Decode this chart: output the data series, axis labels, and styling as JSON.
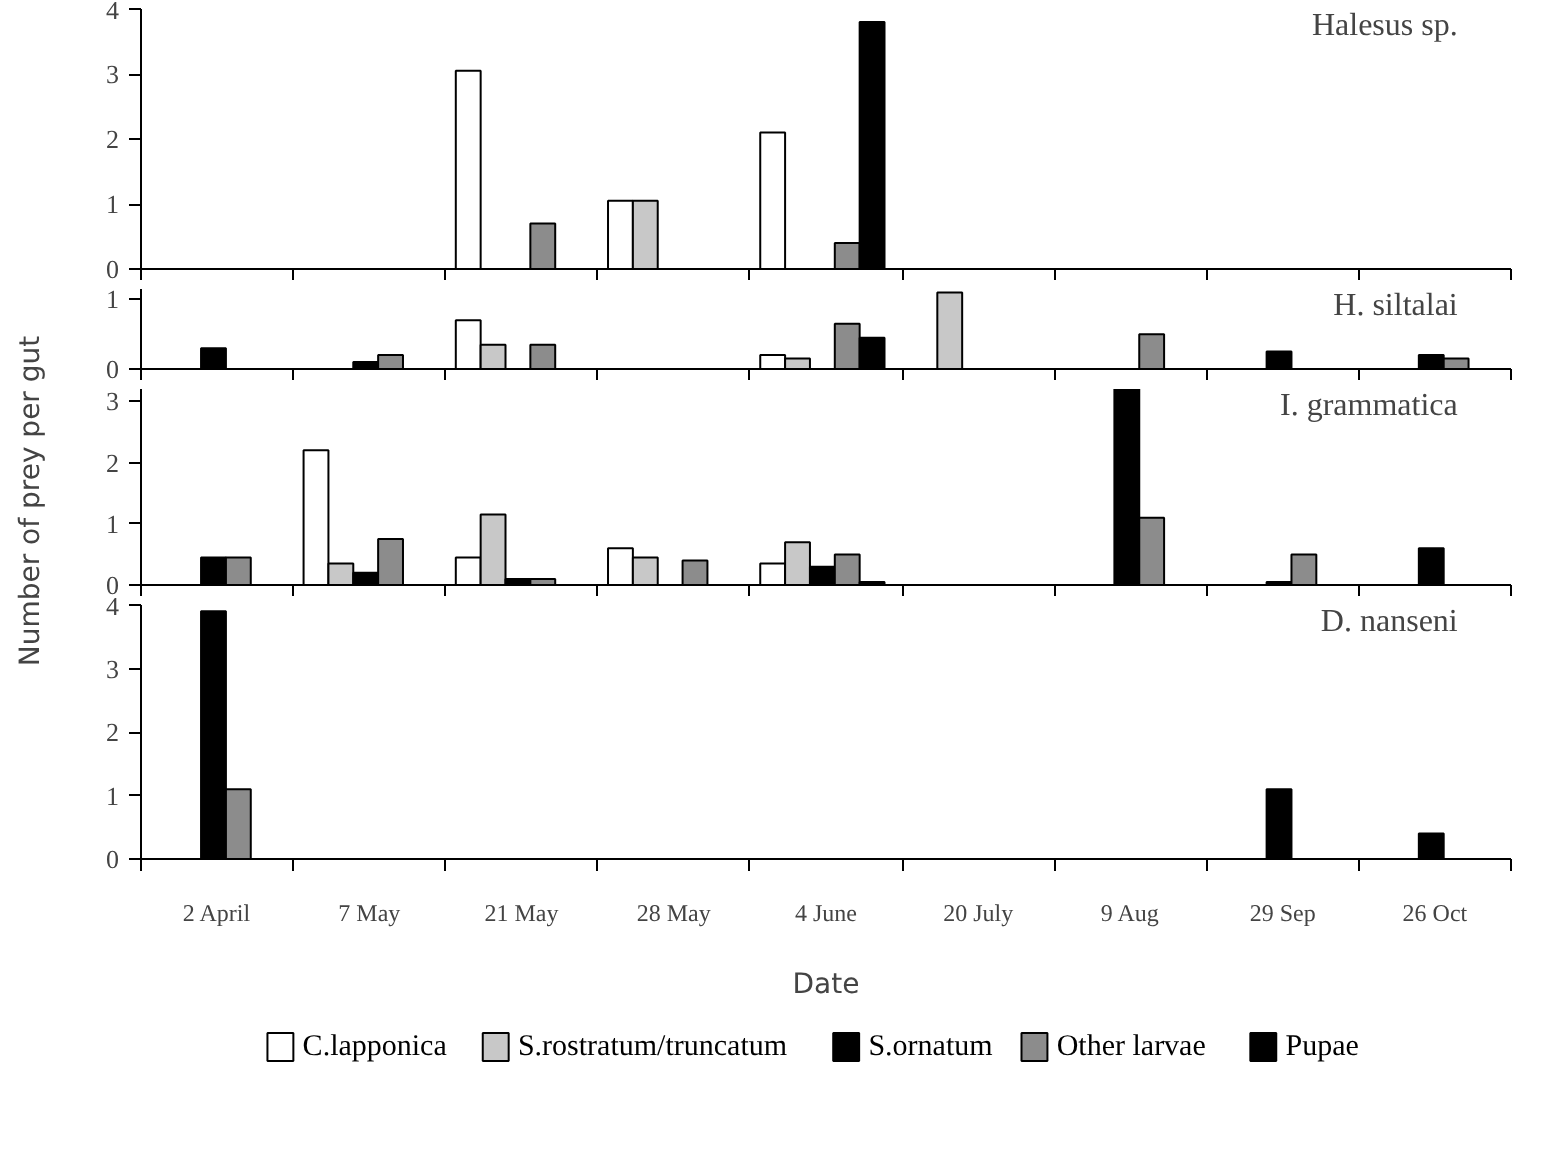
{
  "chart_data": [
    {
      "type": "bar",
      "title": "Halesus sp.",
      "ylabel": "Number of prey per gut",
      "categories": [
        null,
        null,
        null,
        null,
        null,
        null,
        null,
        null,
        null
      ],
      "ylim": [
        0,
        4
      ],
      "yticks": [
        0,
        1,
        2,
        3,
        4
      ],
      "tick_labels": "y",
      "grid": false,
      "series": [
        {
          "color": "#ffffff",
          "values": [
            null,
            null,
            3.05,
            1.05,
            2.1,
            null,
            null,
            null,
            null
          ]
        },
        {
          "color": "#c8c8c8",
          "values": [
            null,
            null,
            null,
            1.05,
            null,
            null,
            null,
            null,
            null
          ]
        },
        {
          "color": "#000000",
          "values": [
            null,
            null,
            null,
            null,
            null,
            null,
            null,
            null,
            null
          ]
        },
        {
          "color": "#8c8c8c",
          "values": [
            null,
            null,
            0.7,
            null,
            0.4,
            null,
            null,
            null,
            null
          ]
        },
        {
          "color": "#000000",
          "values": [
            null,
            null,
            null,
            null,
            3.8,
            null,
            null,
            null,
            null
          ]
        }
      ]
    },
    {
      "type": "bar",
      "title": "H. siltalai",
      "categories": [
        null,
        null,
        null,
        null,
        null,
        null,
        null,
        null,
        null
      ],
      "ylim": [
        0,
        1.15
      ],
      "yticks": [
        0,
        1
      ],
      "tick_labels": "y",
      "grid": false,
      "series": [
        {
          "color": "#ffffff",
          "values": [
            null,
            null,
            0.7,
            null,
            0.2,
            null,
            null,
            null,
            null
          ]
        },
        {
          "color": "#c8c8c8",
          "values": [
            null,
            null,
            0.35,
            null,
            0.15,
            1.1,
            null,
            null,
            null
          ]
        },
        {
          "color": "#000000",
          "values": [
            0.3,
            0.1,
            null,
            null,
            null,
            null,
            null,
            0.25,
            0.2
          ]
        },
        {
          "color": "#8c8c8c",
          "values": [
            null,
            0.2,
            0.35,
            null,
            0.65,
            null,
            0.5,
            null,
            0.15
          ]
        },
        {
          "color": "#000000",
          "values": [
            null,
            null,
            null,
            null,
            0.45,
            null,
            null,
            null,
            null
          ]
        }
      ]
    },
    {
      "type": "bar",
      "title": "I. grammatica",
      "categories": [
        null,
        null,
        null,
        null,
        null,
        null,
        null,
        null,
        null
      ],
      "ylim": [
        0,
        3.2
      ],
      "yticks": [
        0,
        1,
        2,
        3
      ],
      "tick_labels": "y",
      "grid": false,
      "series": [
        {
          "color": "#ffffff",
          "values": [
            null,
            2.2,
            0.45,
            0.6,
            0.35,
            null,
            null,
            null,
            null
          ]
        },
        {
          "color": "#c8c8c8",
          "values": [
            null,
            0.35,
            1.15,
            0.45,
            0.7,
            null,
            null,
            null,
            null
          ]
        },
        {
          "color": "#000000",
          "values": [
            0.45,
            0.2,
            0.1,
            null,
            0.3,
            null,
            3.2,
            0.05,
            0.6
          ]
        },
        {
          "color": "#8c8c8c",
          "values": [
            0.45,
            0.75,
            0.1,
            0.4,
            0.5,
            null,
            1.1,
            0.5,
            null
          ]
        },
        {
          "color": "#000000",
          "values": [
            null,
            null,
            null,
            null,
            0.05,
            null,
            null,
            null,
            null
          ]
        }
      ]
    },
    {
      "type": "bar",
      "title": "D. nanseni",
      "xlabel": "Date",
      "categories": [
        "2 April",
        "7 May",
        "21 May",
        "28 May",
        "4 June",
        "20 July",
        "9 Aug",
        "29 Sep",
        "26 Oct"
      ],
      "ylim": [
        0,
        4
      ],
      "yticks": [
        0,
        1,
        2,
        3,
        4
      ],
      "grid": false,
      "legend": "bottom",
      "series": [
        {
          "name": "C.lapponica",
          "color": "#ffffff",
          "values": [
            null,
            null,
            null,
            null,
            null,
            null,
            null,
            null,
            null
          ]
        },
        {
          "name": "S.rostratum/truncatum",
          "color": "#c8c8c8",
          "values": [
            null,
            null,
            null,
            null,
            null,
            null,
            null,
            null,
            null
          ]
        },
        {
          "name": "S.ornatum",
          "color": "#000000",
          "values": [
            3.9,
            null,
            null,
            null,
            null,
            null,
            null,
            1.1,
            0.4
          ]
        },
        {
          "name": "Other larvae",
          "color": "#8c8c8c",
          "values": [
            1.1,
            null,
            null,
            null,
            null,
            null,
            null,
            null,
            null
          ]
        },
        {
          "name": "Pupae",
          "color": "#000000",
          "values": [
            null,
            null,
            null,
            null,
            null,
            null,
            null,
            null,
            null
          ]
        }
      ]
    }
  ]
}
